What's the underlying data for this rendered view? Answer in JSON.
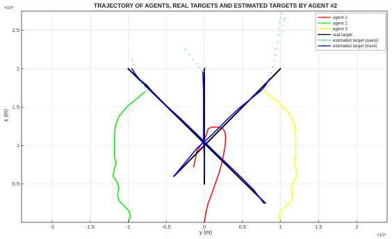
{
  "chart_data": {
    "type": "line",
    "title": "TRAJECTORY OF AGENTS, REAL TARGETS AND ESTIMATED TARGETS BY AGENT #2",
    "xlabel": "y (m)",
    "ylabel": "x (m)",
    "x_exponent_label": "×10⁴",
    "y_exponent_label": "×10⁴",
    "xlim": [
      -2.4,
      2.4
    ],
    "ylim": [
      0,
      2.75
    ],
    "xticks": [
      -2,
      -1.5,
      -1,
      -0.5,
      0,
      0.5,
      1,
      1.5,
      2
    ],
    "xtick_labels": [
      "-2",
      "-1.5",
      "-1",
      "-0.5",
      "0",
      "0.5",
      "1",
      "1.5",
      "2"
    ],
    "yticks": [
      0.5,
      1,
      1.5,
      2,
      2.5
    ],
    "ytick_labels": [
      "0.5",
      "1",
      "1.5",
      "2",
      "2.5"
    ],
    "grid": true,
    "legend_position": "top-right",
    "series": [
      {
        "name": "agent 1",
        "color": "#ff0000",
        "style": "line",
        "points": [
          [
            0.0,
            0.0
          ],
          [
            0.02,
            0.12
          ],
          [
            0.05,
            0.25
          ],
          [
            0.1,
            0.38
          ],
          [
            0.15,
            0.52
          ],
          [
            0.2,
            0.66
          ],
          [
            0.24,
            0.82
          ],
          [
            0.27,
            0.98
          ],
          [
            0.28,
            1.1
          ],
          [
            0.27,
            1.18
          ],
          [
            0.24,
            1.22
          ],
          [
            0.18,
            1.24
          ],
          [
            0.1,
            1.24
          ],
          [
            0.05,
            1.22
          ],
          [
            0.03,
            1.15
          ],
          [
            0.0,
            1.08
          ],
          [
            -0.05,
            1.0
          ],
          [
            -0.1,
            0.92
          ],
          [
            -0.12,
            0.82
          ],
          [
            -0.14,
            0.72
          ]
        ]
      },
      {
        "name": "agent 2",
        "color": "#00ee00",
        "style": "line",
        "points": [
          [
            -1.0,
            0.0
          ],
          [
            -0.97,
            0.08
          ],
          [
            -0.99,
            0.15
          ],
          [
            -1.04,
            0.2
          ],
          [
            -1.12,
            0.28
          ],
          [
            -1.14,
            0.36
          ],
          [
            -1.12,
            0.45
          ],
          [
            -1.16,
            0.55
          ],
          [
            -1.2,
            0.6
          ],
          [
            -1.18,
            0.7
          ],
          [
            -1.16,
            0.78
          ],
          [
            -1.18,
            0.85
          ],
          [
            -1.18,
            0.95
          ],
          [
            -1.18,
            1.1
          ],
          [
            -1.17,
            1.25
          ],
          [
            -1.12,
            1.38
          ],
          [
            -1.02,
            1.5
          ],
          [
            -0.9,
            1.6
          ],
          [
            -0.78,
            1.7
          ]
        ]
      },
      {
        "name": "agent 3",
        "color": "#ffff00",
        "style": "line",
        "points": [
          [
            1.0,
            0.0
          ],
          [
            0.98,
            0.08
          ],
          [
            1.0,
            0.15
          ],
          [
            1.06,
            0.2
          ],
          [
            1.14,
            0.28
          ],
          [
            1.16,
            0.36
          ],
          [
            1.14,
            0.45
          ],
          [
            1.18,
            0.55
          ],
          [
            1.22,
            0.6
          ],
          [
            1.2,
            0.7
          ],
          [
            1.18,
            0.78
          ],
          [
            1.2,
            0.85
          ],
          [
            1.2,
            0.95
          ],
          [
            1.2,
            1.1
          ],
          [
            1.19,
            1.25
          ],
          [
            1.14,
            1.38
          ],
          [
            1.04,
            1.5
          ],
          [
            0.92,
            1.6
          ],
          [
            0.8,
            1.7
          ]
        ]
      },
      {
        "name": "real target",
        "color": "#000000",
        "style": "line",
        "segments": [
          [
            [
              -1.0,
              2.0
            ],
            [
              0.8,
              0.25
            ]
          ],
          [
            [
              1.0,
              2.0
            ],
            [
              -0.4,
              0.6
            ]
          ],
          [
            [
              0.0,
              2.0
            ],
            [
              0.0,
              0.5
            ]
          ]
        ]
      },
      {
        "name": "estimated target (query)",
        "color": "#48d1cc",
        "style": "dots",
        "points": [
          [
            -0.95,
            2.12
          ],
          [
            -0.93,
            2.05
          ],
          [
            -0.91,
            1.98
          ],
          [
            -0.89,
            1.92
          ],
          [
            -0.86,
            1.88
          ],
          [
            -0.83,
            1.83
          ],
          [
            -0.8,
            1.8
          ],
          [
            -0.78,
            1.76
          ],
          [
            -0.75,
            1.72
          ],
          [
            0.85,
            1.88
          ],
          [
            0.88,
            1.95
          ],
          [
            0.9,
            2.02
          ],
          [
            0.92,
            2.1
          ],
          [
            0.93,
            2.18
          ],
          [
            0.94,
            2.26
          ],
          [
            0.96,
            2.35
          ],
          [
            0.97,
            2.44
          ],
          [
            0.98,
            2.52
          ],
          [
            0.99,
            2.6
          ],
          [
            1.0,
            2.66
          ],
          [
            1.02,
            2.72
          ],
          [
            1.03,
            2.48
          ],
          [
            1.04,
            2.56
          ],
          [
            1.05,
            2.63
          ],
          [
            1.06,
            2.66
          ],
          [
            -0.25,
            2.25
          ],
          [
            -0.2,
            2.18
          ],
          [
            -0.15,
            2.12
          ],
          [
            -0.1,
            2.06
          ],
          [
            -0.07,
            2.02
          ],
          [
            -0.04,
            1.98
          ],
          [
            0.0,
            1.96
          ],
          [
            0.01,
            1.99
          ],
          [
            0.02,
            2.02
          ]
        ]
      },
      {
        "name": "estimated target (track)",
        "color": "#0000ff",
        "style": "line",
        "segments": [
          [
            [
              -0.95,
              2.0
            ],
            [
              -0.9,
              1.92
            ],
            [
              -0.85,
              1.86
            ],
            [
              -0.8,
              1.82
            ],
            [
              -0.75,
              1.78
            ],
            [
              -0.7,
              1.72
            ],
            [
              -0.5,
              1.52
            ],
            [
              -0.3,
              1.34
            ],
            [
              -0.1,
              1.15
            ],
            [
              0.1,
              0.95
            ],
            [
              0.3,
              0.76
            ],
            [
              0.5,
              0.57
            ],
            [
              0.65,
              0.42
            ],
            [
              0.78,
              0.25
            ]
          ],
          [
            [
              0.85,
              1.86
            ],
            [
              0.8,
              1.78
            ],
            [
              0.75,
              1.72
            ],
            [
              0.6,
              1.6
            ],
            [
              0.45,
              1.48
            ],
            [
              0.3,
              1.34
            ],
            [
              0.1,
              1.14
            ],
            [
              -0.1,
              0.96
            ],
            [
              -0.25,
              0.78
            ],
            [
              -0.4,
              0.6
            ]
          ],
          [
            [
              -0.02,
              1.96
            ],
            [
              -0.01,
              1.7
            ],
            [
              -0.01,
              1.4
            ],
            [
              -0.01,
              1.1
            ],
            [
              0.0,
              0.8
            ],
            [
              0.0,
              0.6
            ]
          ]
        ]
      }
    ]
  }
}
